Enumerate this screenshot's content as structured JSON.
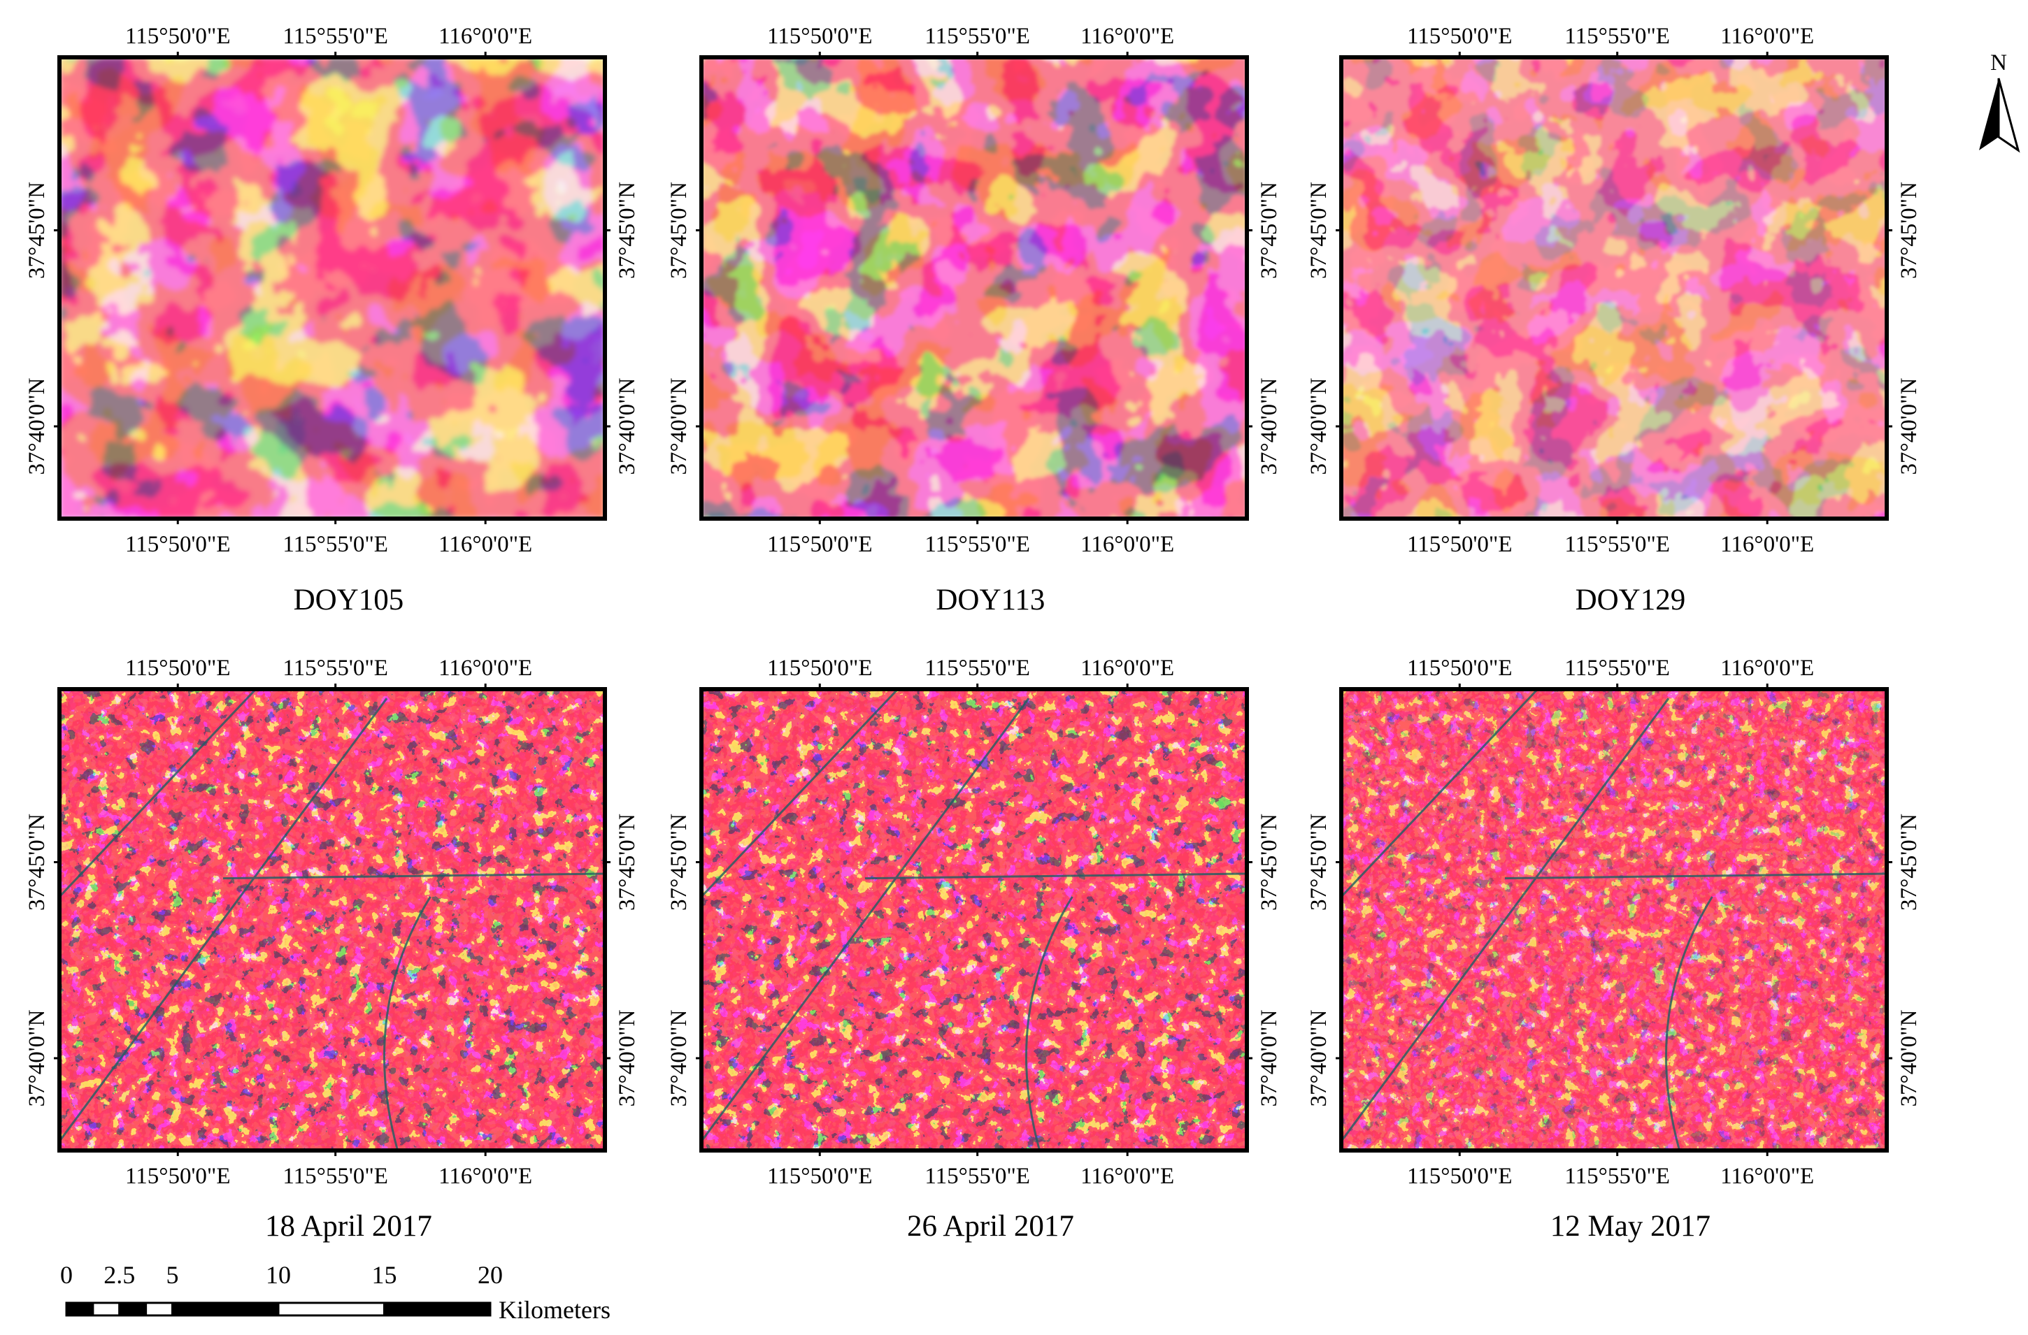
{
  "panels": [
    {
      "caption": "DOY105",
      "texture": "coarse",
      "tone": "a"
    },
    {
      "caption": "DOY113",
      "texture": "coarse",
      "tone": "b"
    },
    {
      "caption": "DOY129",
      "texture": "coarse",
      "tone": "c"
    },
    {
      "caption": "18 April 2017",
      "texture": "fine",
      "tone": "a"
    },
    {
      "caption": "26 April 2017",
      "texture": "fine",
      "tone": "a"
    },
    {
      "caption": "12 May 2017",
      "texture": "fine",
      "tone": "c"
    }
  ],
  "lon_ticks": [
    "115°50'0\"E",
    "115°55'0\"E",
    "116°0'0\"E"
  ],
  "lat_ticks": [
    "37°45'0\"N",
    "37°40'0\"N"
  ],
  "north_arrow": {
    "label": "N",
    "icon": "north-arrow-icon"
  },
  "scale_bar": {
    "labels": [
      "0",
      "2.5",
      "5",
      "10",
      "15",
      "20"
    ],
    "unit": "Kilometers",
    "values_km": [
      0,
      2.5,
      5,
      10,
      15,
      20
    ]
  },
  "colors": {
    "vegetation": "#ff1f2d",
    "bare_soil_urban": "#2fbfb9",
    "water_bright": "#47f0ee",
    "frame": "#000000"
  }
}
